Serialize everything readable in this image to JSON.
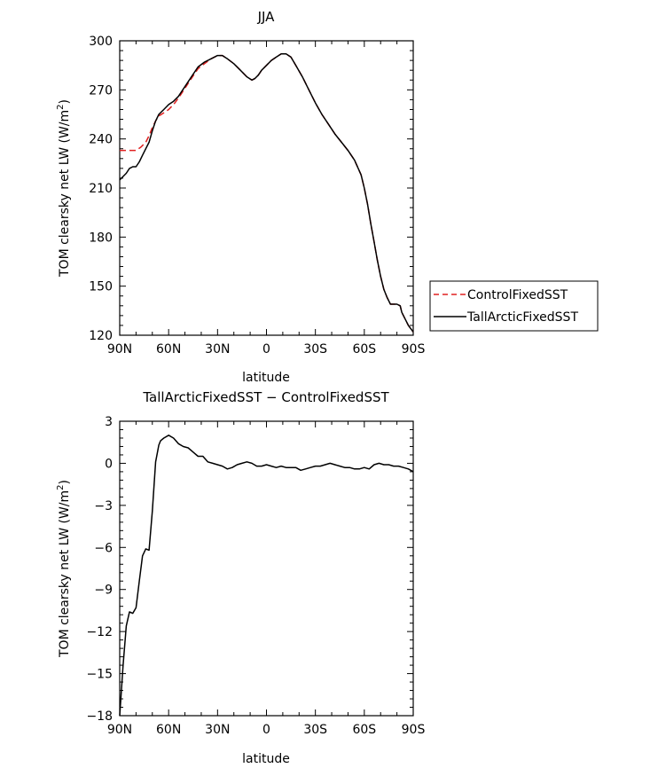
{
  "chart_data": [
    {
      "type": "line",
      "title": "JJA",
      "xlabel": "latitude",
      "ylabel_main": "TOM clearsky net LW (W/m",
      "ylabel_sup": "2",
      "ylabel_end": ")",
      "xlim": [
        90,
        -90
      ],
      "ylim": [
        120,
        300
      ],
      "xticks": [
        90,
        60,
        30,
        0,
        -30,
        -60,
        -90
      ],
      "xtick_labels": [
        "90N",
        "60N",
        "30N",
        "0",
        "30S",
        "60S",
        "90S"
      ],
      "yticks": [
        120,
        150,
        180,
        210,
        240,
        270,
        300
      ],
      "ytick_labels": [
        "120",
        "150",
        "180",
        "210",
        "240",
        "270",
        "300"
      ],
      "legend_position": "right",
      "series": [
        {
          "name": "ControlFixedSST",
          "color": "#e02020",
          "dash": "dashed",
          "x": [
            90,
            85,
            80,
            77,
            74,
            72,
            70,
            68,
            66,
            63,
            60,
            57,
            54,
            50,
            46,
            42,
            38,
            34,
            30,
            27,
            24,
            20,
            16,
            12,
            9,
            7,
            5,
            3,
            0,
            -3,
            -6,
            -9,
            -12,
            -15,
            -18,
            -22,
            -26,
            -30,
            -34,
            -38,
            -42,
            -46,
            -50,
            -54,
            -58,
            -60,
            -62,
            -64,
            -66,
            -68,
            -70,
            -72,
            -74,
            -76,
            -78,
            -80,
            -82,
            -83,
            -85,
            -87,
            -90
          ],
          "y": [
            233,
            233,
            233,
            235,
            238,
            242,
            247,
            251,
            254,
            256,
            258,
            261,
            265,
            271,
            277,
            283,
            286,
            289,
            291,
            291,
            289,
            286,
            282,
            278,
            276,
            277,
            279,
            282,
            285,
            288,
            290,
            292,
            292,
            290,
            285,
            278,
            270,
            262,
            255,
            249,
            243,
            238,
            233,
            227,
            218,
            210,
            200,
            188,
            177,
            166,
            156,
            148,
            143,
            139,
            139,
            139,
            138,
            134,
            130,
            126,
            122
          ]
        },
        {
          "name": "TallArcticFixedSST",
          "color": "#000000",
          "dash": "solid",
          "x": [
            90,
            88,
            86,
            84,
            82,
            80,
            78,
            76,
            74,
            72,
            70,
            68,
            66,
            63,
            60,
            57,
            54,
            50,
            46,
            42,
            38,
            34,
            30,
            27,
            24,
            20,
            16,
            12,
            9,
            7,
            5,
            3,
            0,
            -3,
            -6,
            -9,
            -12,
            -15,
            -18,
            -22,
            -26,
            -30,
            -34,
            -38,
            -42,
            -46,
            -50,
            -54,
            -58,
            -60,
            -62,
            -64,
            -66,
            -68,
            -70,
            -72,
            -74,
            -76,
            -78,
            -80,
            -82,
            -83,
            -85,
            -87,
            -90
          ],
          "y": [
            215,
            217,
            219,
            222,
            223,
            223,
            226,
            230,
            234,
            238,
            245,
            251,
            255,
            258,
            261,
            263,
            266,
            272,
            278,
            284,
            287,
            289,
            291,
            291,
            289,
            286,
            282,
            278,
            276,
            277,
            279,
            282,
            285,
            288,
            290,
            292,
            292,
            290,
            285,
            278,
            270,
            262,
            255,
            249,
            243,
            238,
            233,
            227,
            218,
            210,
            200,
            188,
            177,
            166,
            156,
            148,
            143,
            139,
            139,
            139,
            138,
            134,
            130,
            126,
            122
          ]
        }
      ]
    },
    {
      "type": "line",
      "title": "TallArcticFixedSST − ControlFixedSST",
      "xlabel": "latitude",
      "ylabel_main": "TOM clearsky net LW (W/m",
      "ylabel_sup": "2",
      "ylabel_end": ")",
      "xlim": [
        90,
        -90
      ],
      "ylim": [
        -18,
        3
      ],
      "xticks": [
        90,
        60,
        30,
        0,
        -30,
        -60,
        -90
      ],
      "xtick_labels": [
        "90N",
        "60N",
        "30N",
        "0",
        "30S",
        "60S",
        "90S"
      ],
      "yticks": [
        -18,
        -15,
        -12,
        -9,
        -6,
        -3,
        0,
        3
      ],
      "ytick_labels": [
        "−18",
        "−15",
        "−12",
        "−9",
        "−6",
        "−3",
        "0",
        "3"
      ],
      "series": [
        {
          "color": "#000000",
          "dash": "solid",
          "x": [
            90,
            88,
            86,
            84,
            82,
            80,
            78,
            76,
            74,
            72,
            70,
            68,
            66,
            65,
            63,
            60,
            57,
            54,
            51,
            48,
            45,
            42,
            39,
            36,
            33,
            30,
            27,
            24,
            21,
            18,
            15,
            12,
            9,
            6,
            3,
            0,
            -3,
            -6,
            -9,
            -12,
            -15,
            -18,
            -21,
            -24,
            -27,
            -30,
            -33,
            -36,
            -39,
            -42,
            -45,
            -48,
            -51,
            -54,
            -57,
            -60,
            -63,
            -66,
            -69,
            -72,
            -75,
            -78,
            -81,
            -84,
            -87,
            -90
          ],
          "y": [
            -18,
            -14.5,
            -11.6,
            -10.6,
            -10.7,
            -10.3,
            -8.4,
            -6.6,
            -6.1,
            -6.2,
            -3.4,
            0.1,
            1.3,
            1.6,
            1.8,
            2.0,
            1.8,
            1.4,
            1.2,
            1.1,
            0.8,
            0.5,
            0.5,
            0.1,
            0.0,
            -0.1,
            -0.2,
            -0.4,
            -0.3,
            -0.1,
            0.0,
            0.1,
            0.0,
            -0.2,
            -0.2,
            -0.1,
            -0.2,
            -0.3,
            -0.2,
            -0.3,
            -0.3,
            -0.3,
            -0.5,
            -0.4,
            -0.3,
            -0.2,
            -0.2,
            -0.1,
            0.0,
            -0.1,
            -0.2,
            -0.3,
            -0.3,
            -0.4,
            -0.4,
            -0.3,
            -0.4,
            -0.1,
            0.0,
            -0.1,
            -0.1,
            -0.2,
            -0.2,
            -0.3,
            -0.4,
            -0.6
          ]
        }
      ]
    }
  ]
}
